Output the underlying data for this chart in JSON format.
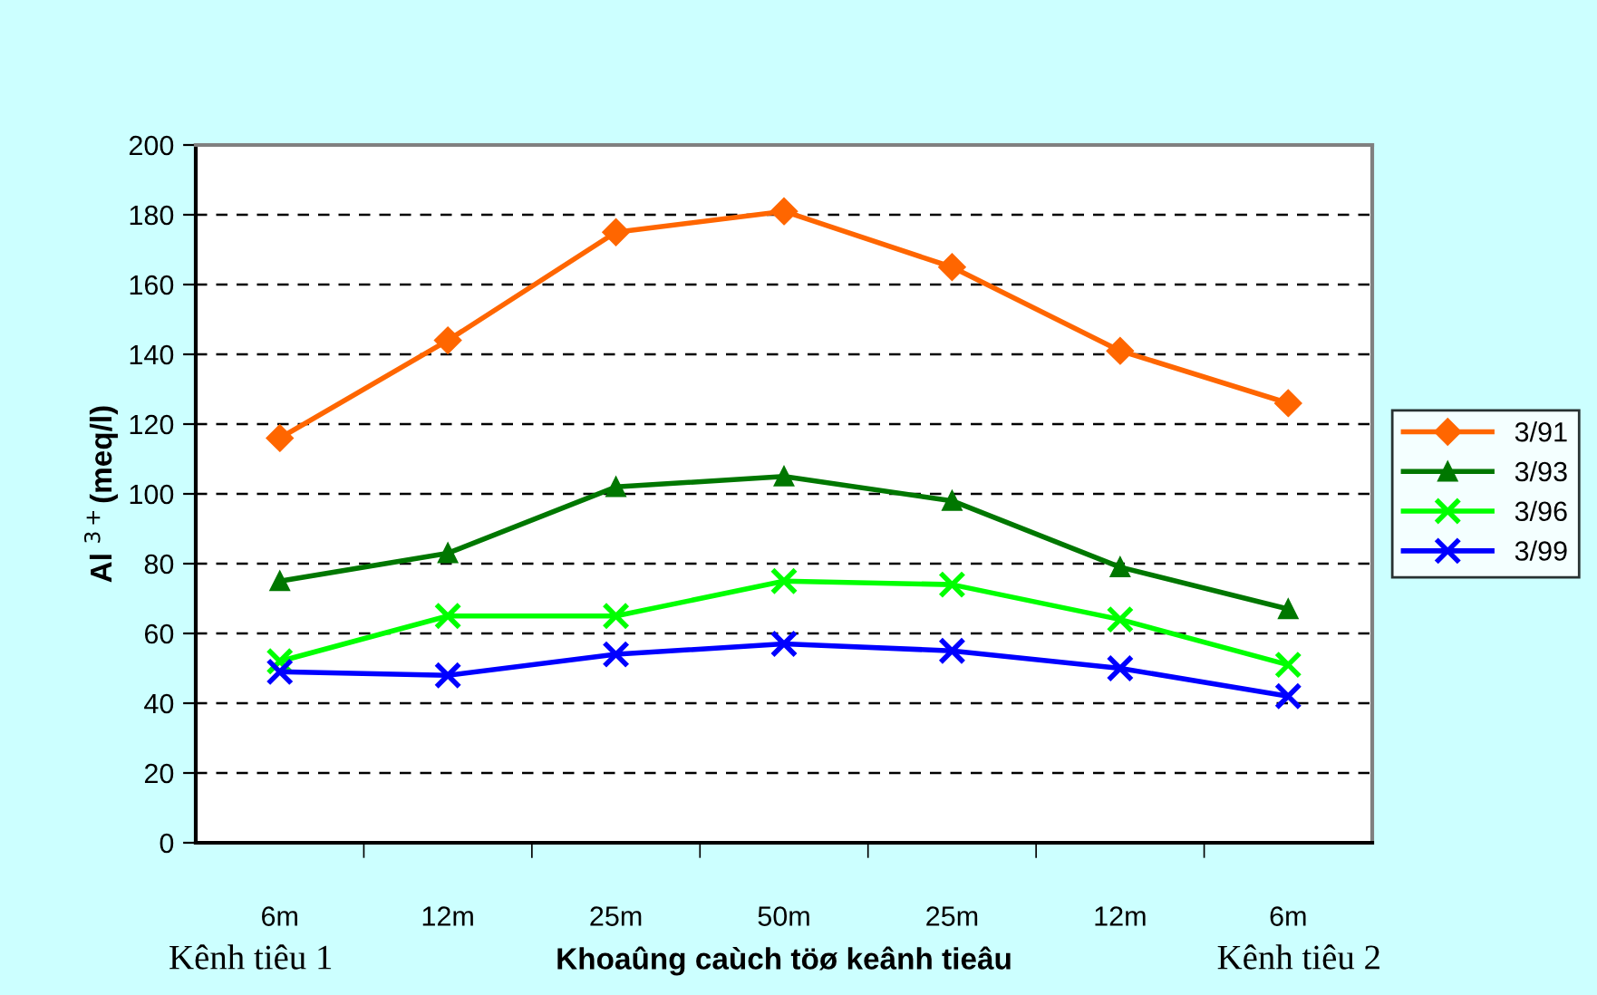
{
  "chart_data": {
    "type": "line",
    "ylabel": "Al $^{3+}$(meq/l)",
    "xlabel": "Khoaûng caùch töø keânh tieâu",
    "categories": [
      "6m",
      "12m",
      "25m",
      "50m",
      "25m",
      "12m",
      "6m"
    ],
    "series": [
      {
        "name": "3/91",
        "color": "#ff6600",
        "marker": "diamond",
        "values": [
          116,
          144,
          175,
          181,
          165,
          141,
          126
        ]
      },
      {
        "name": "3/93",
        "color": "#007700",
        "marker": "triangle",
        "values": [
          75,
          83,
          102,
          105,
          98,
          79,
          67
        ]
      },
      {
        "name": "3/96",
        "color": "#00ff00",
        "marker": "cross",
        "values": [
          52,
          65,
          65,
          75,
          74,
          64,
          51
        ]
      },
      {
        "name": "3/99",
        "color": "#0000ff",
        "marker": "cross",
        "values": [
          49,
          48,
          54,
          57,
          55,
          50,
          42
        ]
      }
    ],
    "ylim": [
      0,
      200
    ],
    "yticks": [
      0,
      20,
      40,
      60,
      80,
      100,
      120,
      140,
      160,
      180,
      200
    ],
    "grid": "y",
    "legend": "right",
    "line_style": "solid",
    "annotations": [
      "Kênh tiêu 1",
      "Kênh tiêu 2"
    ]
  }
}
